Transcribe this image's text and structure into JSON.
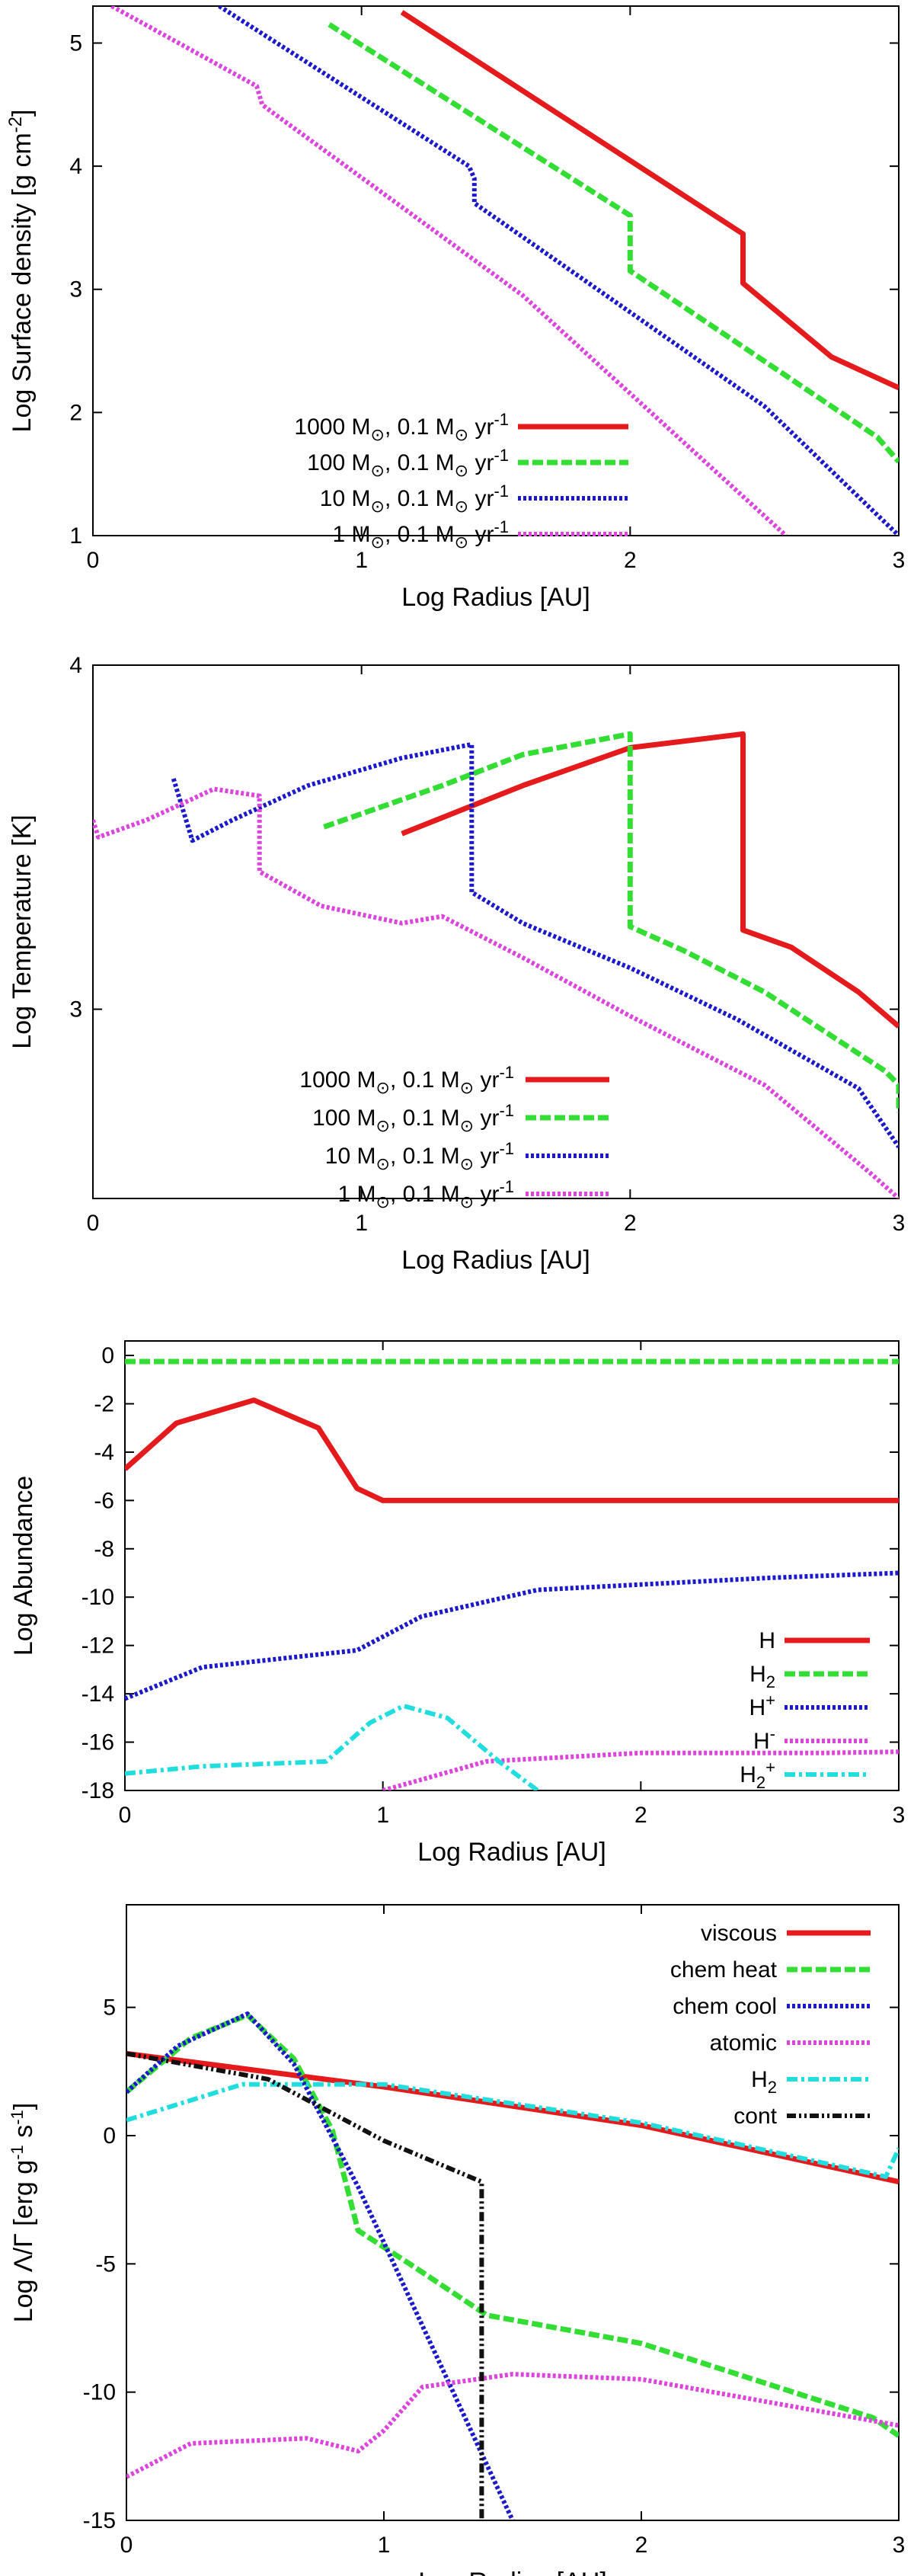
{
  "chart_data": [
    {
      "id": "surface_density",
      "type": "line",
      "xlabel": "Log Radius [AU]",
      "ylabel_html": [
        "Log Surface density [g cm",
        "-2",
        "]"
      ],
      "xlim": [
        0,
        3
      ],
      "ylim": [
        1,
        5.3
      ],
      "xticks": [
        0,
        1,
        2,
        3
      ],
      "yticks": [
        1,
        2,
        3,
        4,
        5
      ],
      "legend_position": "bottom-left",
      "series": [
        {
          "name": "1000 M⊙, 0.1 M⊙ yr-1",
          "color": "#e41a1c",
          "style": "solid",
          "width": 7,
          "x": [
            1.15,
            2.42,
            2.42,
            2.75,
            3.0
          ],
          "y": [
            5.25,
            3.45,
            3.05,
            2.45,
            2.2
          ]
        },
        {
          "name": "100 M⊙, 0.1 M⊙ yr-1",
          "color": "#33dd33",
          "style": "dash",
          "width": 7,
          "x": [
            0.88,
            2.0,
            2.0,
            2.92,
            3.0
          ],
          "y": [
            5.15,
            3.6,
            3.15,
            1.8,
            1.6
          ]
        },
        {
          "name": "10 M⊙, 0.1 M⊙ yr-1",
          "color": "#1a1acc",
          "style": "dot",
          "width": 6,
          "x": [
            0.47,
            1.4,
            1.42,
            1.42,
            2.5,
            3.0
          ],
          "y": [
            5.3,
            4.0,
            3.9,
            3.7,
            2.05,
            1.0
          ]
        },
        {
          "name": "1 M⊙, 0.1 M⊙ yr-1",
          "color": "#dd44dd",
          "style": "dot",
          "width": 6,
          "x": [
            0.07,
            0.61,
            0.63,
            0.66,
            1.6,
            2.58
          ],
          "y": [
            5.3,
            4.65,
            4.5,
            4.45,
            2.95,
            1.0
          ]
        }
      ]
    },
    {
      "id": "temperature",
      "type": "line",
      "xlabel": "Log Radius [AU]",
      "ylabel": "Log Temperature [K]",
      "xlim": [
        0,
        3
      ],
      "ylim": [
        2.45,
        4.0
      ],
      "xticks": [
        0,
        1,
        2,
        3
      ],
      "yticks": [
        3,
        4
      ],
      "legend_position": "bottom-left",
      "series": [
        {
          "name": "1000 M⊙, 0.1 M⊙ yr-1",
          "color": "#e41a1c",
          "style": "solid",
          "width": 7,
          "x": [
            1.15,
            1.6,
            2.0,
            2.42,
            2.42,
            2.6,
            2.85,
            3.0
          ],
          "y": [
            3.51,
            3.65,
            3.76,
            3.8,
            3.23,
            3.18,
            3.05,
            2.95
          ]
        },
        {
          "name": "100 M⊙, 0.1 M⊙ yr-1",
          "color": "#33dd33",
          "style": "dash",
          "width": 7,
          "x": [
            0.86,
            1.3,
            1.6,
            2.0,
            2.0,
            2.2,
            2.5,
            2.95,
            3.0,
            3.0
          ],
          "y": [
            3.53,
            3.65,
            3.74,
            3.8,
            3.24,
            3.17,
            3.05,
            2.82,
            2.78,
            2.7
          ]
        },
        {
          "name": "10 M⊙, 0.1 M⊙ yr-1",
          "color": "#1a1acc",
          "style": "dot",
          "width": 6,
          "x": [
            0.3,
            0.37,
            0.52,
            0.8,
            1.15,
            1.41,
            1.41,
            1.6,
            2.0,
            2.4,
            2.85,
            3.0
          ],
          "y": [
            3.67,
            3.49,
            3.55,
            3.65,
            3.73,
            3.77,
            3.34,
            3.25,
            3.12,
            2.97,
            2.77,
            2.6
          ]
        },
        {
          "name": "1 M⊙, 0.1 M⊙ yr-1",
          "color": "#dd44dd",
          "style": "dot",
          "width": 6,
          "x": [
            0.0,
            0.02,
            0.2,
            0.45,
            0.62,
            0.62,
            0.85,
            1.15,
            1.3,
            1.6,
            2.0,
            2.5,
            2.9,
            3.0
          ],
          "y": [
            3.55,
            3.5,
            3.55,
            3.64,
            3.62,
            3.4,
            3.3,
            3.25,
            3.27,
            3.15,
            2.98,
            2.78,
            2.52,
            2.45
          ]
        }
      ]
    },
    {
      "id": "abundance",
      "type": "line",
      "xlabel": "Log Radius [AU]",
      "ylabel": "Log Abundance",
      "xlim": [
        0,
        3
      ],
      "ylim": [
        -18,
        0.6
      ],
      "xticks": [
        0,
        1,
        2,
        3
      ],
      "yticks": [
        0,
        -2,
        -4,
        -6,
        -8,
        -10,
        -12,
        -14,
        -16,
        -18
      ],
      "legend_position": "bottom-right",
      "series": [
        {
          "name": "H",
          "color": "#e41a1c",
          "style": "solid",
          "width": 7,
          "x": [
            0.0,
            0.2,
            0.5,
            0.75,
            0.9,
            1.0,
            3.0
          ],
          "y": [
            -4.7,
            -2.8,
            -1.85,
            -3.0,
            -5.5,
            -6.0,
            -6.0
          ]
        },
        {
          "name": "H2",
          "color": "#33dd33",
          "style": "dash",
          "width": 7,
          "x": [
            0.0,
            3.0
          ],
          "y": [
            -0.25,
            -0.25
          ]
        },
        {
          "name": "H+",
          "color": "#1a1acc",
          "style": "dot",
          "width": 6,
          "x": [
            0.0,
            0.3,
            0.9,
            1.15,
            1.6,
            2.5,
            3.0
          ],
          "y": [
            -14.2,
            -12.9,
            -12.2,
            -10.8,
            -9.7,
            -9.2,
            -9.0
          ]
        },
        {
          "name": "H-",
          "color": "#dd44dd",
          "style": "dot",
          "width": 6,
          "x": [
            1.0,
            1.4,
            2.0,
            2.7,
            3.0
          ],
          "y": [
            -18.0,
            -16.8,
            -16.45,
            -16.45,
            -16.4
          ]
        },
        {
          "name": "H2+",
          "color": "#22dddd",
          "style": "dashdot",
          "width": 6,
          "x": [
            0.0,
            0.3,
            0.78,
            0.95,
            1.08,
            1.25,
            1.45,
            1.6
          ],
          "y": [
            -17.3,
            -17.0,
            -16.8,
            -15.2,
            -14.5,
            -15.0,
            -16.8,
            -18.0
          ]
        }
      ]
    },
    {
      "id": "cooling",
      "type": "line",
      "xlabel": "Log Radius [AU]",
      "ylabel": "Log Λ/Γ [erg g-1 s-1]",
      "xlim": [
        0,
        3
      ],
      "ylim": [
        -15,
        9
      ],
      "xticks": [
        0,
        1,
        2,
        3
      ],
      "yticks": [
        5,
        0,
        -5,
        -10,
        -15
      ],
      "legend_position": "top-right",
      "series": [
        {
          "name": "viscous",
          "color": "#e41a1c",
          "style": "solid",
          "width": 7,
          "x": [
            0.0,
            1.0,
            2.0,
            3.0
          ],
          "y": [
            3.2,
            1.9,
            0.4,
            -1.8
          ]
        },
        {
          "name": "chem heat",
          "color": "#33dd33",
          "style": "dash",
          "width": 7,
          "x": [
            0.0,
            0.25,
            0.47,
            0.65,
            0.8,
            0.9,
            1.1,
            1.4,
            2.0,
            2.9,
            3.0
          ],
          "y": [
            1.7,
            3.8,
            4.7,
            3.0,
            0.2,
            -3.7,
            -5.0,
            -7.0,
            -8.1,
            -11.0,
            -11.7
          ]
        },
        {
          "name": "chem cool",
          "color": "#1a1acc",
          "style": "dot",
          "width": 6,
          "x": [
            0.0,
            0.2,
            0.47,
            0.65,
            0.9,
            1.2,
            1.5
          ],
          "y": [
            1.7,
            3.5,
            4.75,
            2.8,
            -2.0,
            -8.5,
            -15.0
          ]
        },
        {
          "name": "atomic",
          "color": "#dd44dd",
          "style": "dot",
          "width": 6,
          "x": [
            0.0,
            0.25,
            0.7,
            0.9,
            1.0,
            1.15,
            1.5,
            2.0,
            3.0
          ],
          "y": [
            -13.3,
            -12.0,
            -11.8,
            -12.3,
            -11.5,
            -9.8,
            -9.3,
            -9.5,
            -11.3
          ]
        },
        {
          "name": "H2",
          "color": "#22dddd",
          "style": "dashdot",
          "width": 6,
          "x": [
            0.0,
            0.45,
            1.0,
            2.0,
            2.95,
            3.0
          ],
          "y": [
            0.6,
            2.0,
            2.0,
            0.5,
            -1.6,
            -0.5
          ]
        },
        {
          "name": "cont",
          "color": "#111111",
          "style": "dashdotdot",
          "width": 6,
          "x": [
            0.0,
            0.55,
            1.0,
            1.38,
            1.38
          ],
          "y": [
            3.2,
            2.2,
            -0.2,
            -1.8,
            -15.0
          ]
        }
      ]
    }
  ]
}
